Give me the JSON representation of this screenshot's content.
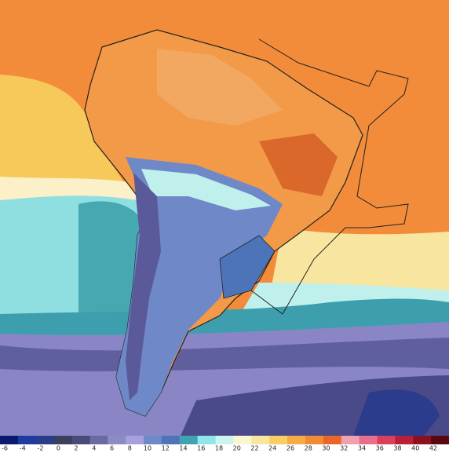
{
  "colorbar": {
    "ticks": [
      -6,
      -4,
      -2,
      0,
      2,
      4,
      6,
      8,
      10,
      12,
      14,
      16,
      18,
      20,
      22,
      24,
      26,
      28,
      30,
      32,
      34,
      36,
      38,
      40,
      42
    ],
    "colors": [
      "#0a1a6e",
      "#1f3aa0",
      "#2b3c8c",
      "#3a3f5c",
      "#4a4a78",
      "#6a6aa0",
      "#8c8cc4",
      "#a8a0dc",
      "#6f88c8",
      "#4d74b8",
      "#3fa3b4",
      "#8ee6e8",
      "#cdf4ee",
      "#fbf6d2",
      "#f8e7a0",
      "#f7cf62",
      "#f5ac44",
      "#f08c34",
      "#e8662a",
      "#f0a0b0",
      "#e8708c",
      "#d8405c",
      "#b82038",
      "#8c1020",
      "#5a0810"
    ]
  }
}
